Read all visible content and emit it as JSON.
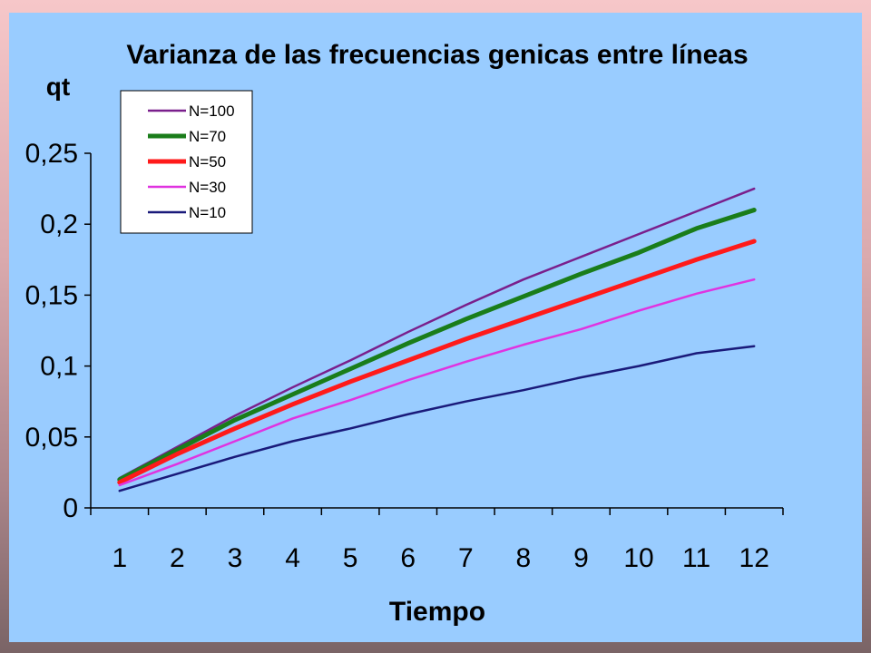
{
  "chart_data": {
    "type": "line",
    "title": "Varianza de las frecuencias genicas entre líneas",
    "xlabel": "Tiempo",
    "ylabel": "qt",
    "categories": [
      "1",
      "2",
      "3",
      "4",
      "5",
      "6",
      "7",
      "8",
      "9",
      "10",
      "11",
      "12"
    ],
    "ylim": [
      0,
      0.25
    ],
    "yticks": [
      {
        "value": 0,
        "label": "0"
      },
      {
        "value": 0.05,
        "label": "0,05"
      },
      {
        "value": 0.1,
        "label": "0,1"
      },
      {
        "value": 0.15,
        "label": "0,15"
      },
      {
        "value": 0.2,
        "label": "0,2"
      },
      {
        "value": 0.25,
        "label": "0,25"
      }
    ],
    "grid": false,
    "legend_position": "top-left",
    "series": [
      {
        "name": "N=100",
        "color": "#7a1f8c",
        "values": [
          0.021,
          0.043,
          0.065,
          0.085,
          0.104,
          0.124,
          0.143,
          0.161,
          0.177,
          0.193,
          0.209,
          0.225
        ]
      },
      {
        "name": "N=70",
        "color": "#1a7d1a",
        "values": [
          0.02,
          0.041,
          0.062,
          0.08,
          0.098,
          0.116,
          0.133,
          0.149,
          0.165,
          0.18,
          0.197,
          0.21
        ]
      },
      {
        "name": "N=50",
        "color": "#ff1a1a",
        "values": [
          0.018,
          0.038,
          0.056,
          0.073,
          0.089,
          0.104,
          0.119,
          0.133,
          0.147,
          0.161,
          0.175,
          0.188
        ]
      },
      {
        "name": "N=30",
        "color": "#e033e0",
        "values": [
          0.016,
          0.031,
          0.047,
          0.063,
          0.076,
          0.09,
          0.103,
          0.115,
          0.126,
          0.139,
          0.151,
          0.161
        ]
      },
      {
        "name": "N=10",
        "color": "#1a1a7a",
        "values": [
          0.012,
          0.024,
          0.036,
          0.047,
          0.056,
          0.066,
          0.075,
          0.083,
          0.092,
          0.1,
          0.109,
          0.114
        ]
      }
    ]
  }
}
